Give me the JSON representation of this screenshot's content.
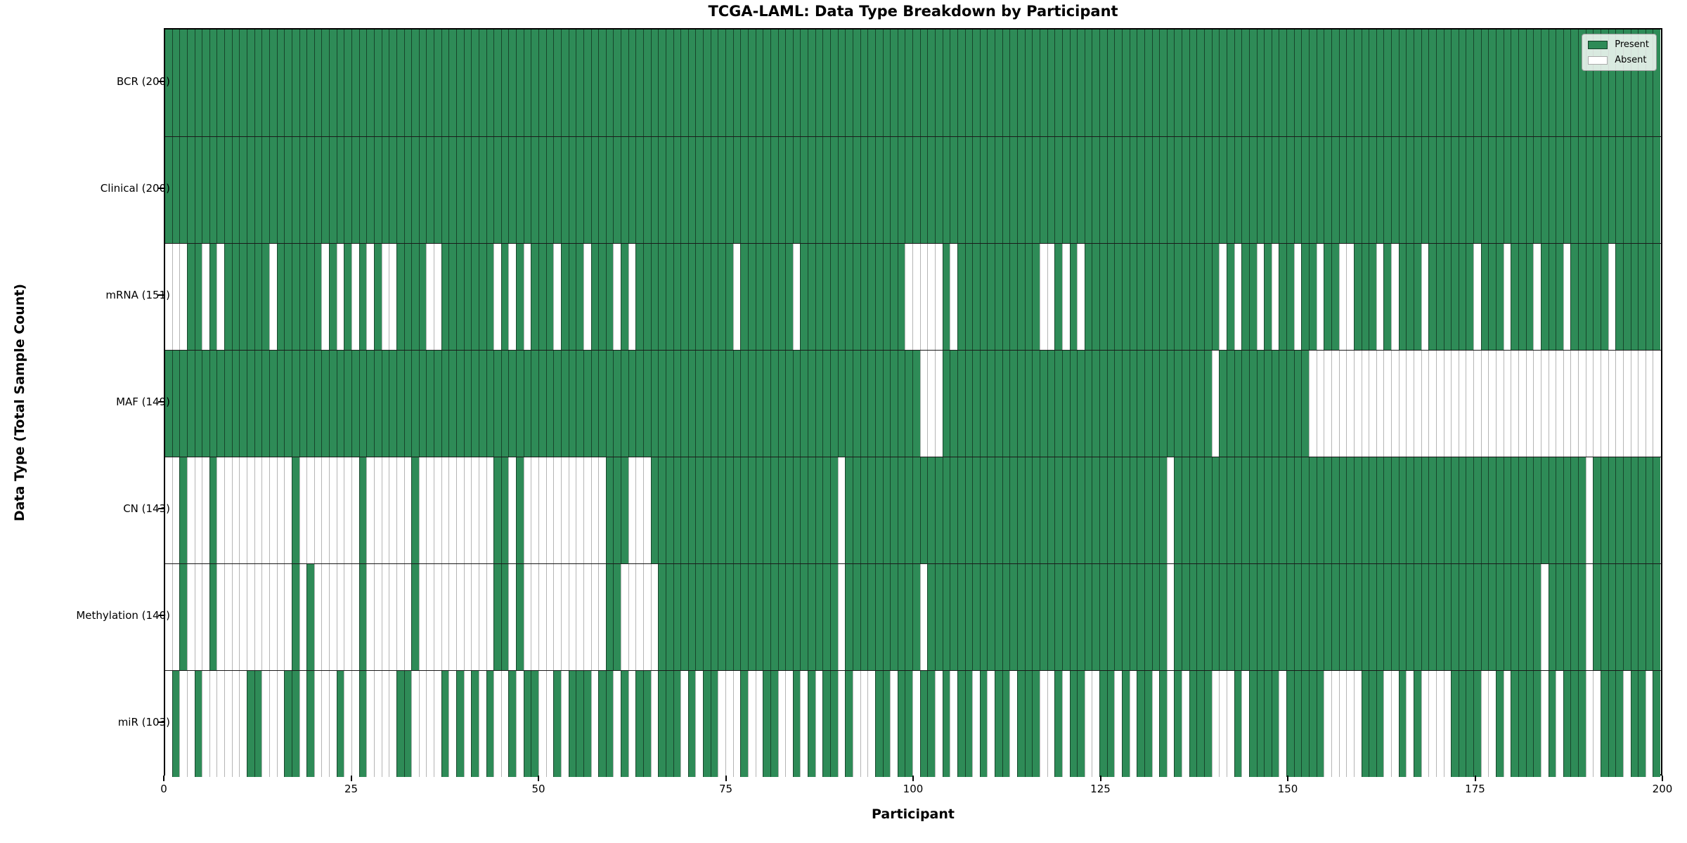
{
  "title": "TCGA-LAML: Data Type Breakdown by Participant",
  "xlabel": "Participant",
  "ylabel": "Data Type (Total Sample Count)",
  "legend": {
    "present_label": "Present",
    "absent_label": "Absent"
  },
  "colors": {
    "present": "#2e8b57",
    "absent": "#ffffff",
    "cell_edge": "#000000",
    "row_divider": "#1a1a1a"
  },
  "x_ticks": [
    0,
    25,
    50,
    75,
    100,
    125,
    150,
    175,
    200
  ],
  "chart_data": {
    "type": "heatmap",
    "x_axis": {
      "label": "Participant",
      "min": 0,
      "max": 200,
      "ticks": [
        0,
        25,
        50,
        75,
        100,
        125,
        150,
        175,
        200
      ]
    },
    "n_participants": 200,
    "legend_entries": [
      {
        "label": "Present",
        "color": "#2e8b57"
      },
      {
        "label": "Absent",
        "color": "#ffffff"
      }
    ],
    "rows": [
      {
        "name": "BCR",
        "label": "BCR (200)",
        "count": 200,
        "absent_columns": []
      },
      {
        "name": "Clinical",
        "label": "Clinical (200)",
        "count": 200,
        "absent_columns": []
      },
      {
        "name": "mRNA",
        "label": "mRNA (151)",
        "count": 151,
        "absent_columns": [
          0,
          1,
          2,
          5,
          7,
          14,
          21,
          23,
          25,
          27,
          29,
          30,
          35,
          36,
          44,
          46,
          48,
          52,
          56,
          60,
          62,
          76,
          84,
          99,
          100,
          101,
          102,
          103,
          105,
          117,
          118,
          120,
          122,
          141,
          143,
          146,
          148,
          151,
          154,
          157,
          158,
          162,
          164,
          168,
          175,
          179,
          183,
          187,
          193
        ]
      },
      {
        "name": "MAF",
        "label": "MAF (149)",
        "count": 149,
        "absent_columns": [
          101,
          102,
          103,
          140,
          153,
          154,
          155,
          156,
          157,
          158,
          159,
          160,
          161,
          162,
          163,
          164,
          165,
          166,
          167,
          168,
          169,
          170,
          171,
          172,
          173,
          174,
          175,
          176,
          177,
          178,
          179,
          180,
          181,
          182,
          183,
          184,
          185,
          186,
          187,
          188,
          189,
          190,
          191,
          192,
          193,
          194,
          195,
          196,
          197,
          198,
          199
        ]
      },
      {
        "name": "CN",
        "label": "CN (143)",
        "count": 143,
        "absent_columns": [
          0,
          1,
          3,
          4,
          5,
          7,
          8,
          9,
          10,
          11,
          12,
          13,
          14,
          15,
          16,
          18,
          19,
          20,
          21,
          22,
          23,
          24,
          25,
          27,
          28,
          29,
          30,
          31,
          32,
          34,
          35,
          36,
          37,
          38,
          39,
          40,
          41,
          42,
          43,
          46,
          48,
          49,
          50,
          51,
          52,
          53,
          54,
          55,
          56,
          57,
          58,
          62,
          63,
          64,
          90,
          134,
          190
        ]
      },
      {
        "name": "Methylation",
        "label": "Methylation (140)",
        "count": 140,
        "absent_columns": [
          0,
          1,
          3,
          4,
          5,
          7,
          8,
          9,
          10,
          11,
          12,
          13,
          14,
          15,
          16,
          18,
          20,
          21,
          22,
          23,
          24,
          25,
          27,
          28,
          29,
          30,
          31,
          32,
          34,
          35,
          36,
          37,
          38,
          39,
          40,
          41,
          42,
          43,
          46,
          48,
          49,
          50,
          51,
          52,
          53,
          54,
          55,
          56,
          57,
          58,
          61,
          62,
          63,
          64,
          65,
          90,
          101,
          134,
          184,
          190
        ]
      },
      {
        "name": "miR",
        "label": "miR (103)",
        "count": 103,
        "absent_columns": [
          0,
          2,
          3,
          5,
          6,
          7,
          8,
          9,
          10,
          13,
          14,
          15,
          18,
          20,
          21,
          22,
          24,
          25,
          27,
          28,
          29,
          30,
          33,
          34,
          35,
          36,
          38,
          40,
          42,
          44,
          45,
          47,
          50,
          51,
          53,
          57,
          60,
          62,
          65,
          69,
          71,
          74,
          75,
          76,
          78,
          79,
          82,
          83,
          85,
          87,
          90,
          92,
          93,
          94,
          97,
          100,
          103,
          105,
          108,
          110,
          113,
          117,
          118,
          120,
          123,
          124,
          127,
          129,
          132,
          134,
          136,
          140,
          141,
          142,
          144,
          149,
          155,
          156,
          157,
          158,
          159,
          163,
          164,
          166,
          168,
          169,
          170,
          171,
          176,
          177,
          179,
          184,
          186,
          190,
          191,
          195,
          198
        ]
      }
    ]
  }
}
